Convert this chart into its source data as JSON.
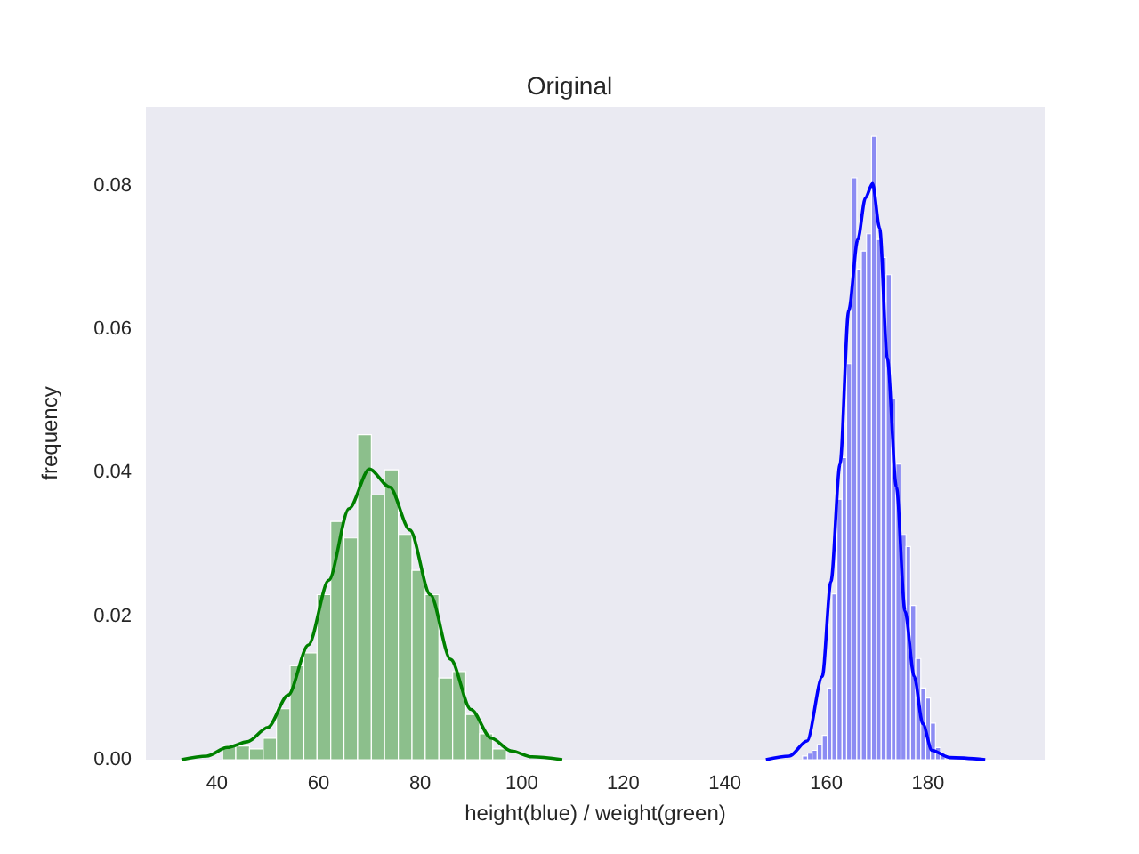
{
  "chart_data": {
    "type": "histogram",
    "title": "Original",
    "xlabel": "height(blue) / weight(green)",
    "ylabel": "frequency",
    "xlim": [
      26,
      203
    ],
    "xticks": [
      40,
      60,
      80,
      100,
      120,
      140,
      160,
      180
    ],
    "ylim": [
      0,
      0.091
    ],
    "yticks": [
      {
        "value": 0,
        "label": "0.00"
      },
      {
        "value": 0.02,
        "label": "0.02"
      },
      {
        "value": 0.04,
        "label": "0.04"
      },
      {
        "value": 0.06,
        "label": "0.06"
      },
      {
        "value": 0.08,
        "label": "0.08"
      }
    ],
    "grid": false,
    "series": [
      {
        "color": "#8cbf8c",
        "bins": [
          41.1,
          43.7,
          46.4,
          49.1,
          51.7,
          54.4,
          57.1,
          59.7,
          62.4,
          65.0,
          67.7,
          70.4,
          73.0,
          75.7,
          78.4,
          81.0,
          83.7,
          86.4,
          89.0,
          91.7,
          94.3,
          97.0
        ],
        "values": [
          0.0019,
          0.0019,
          0.0015,
          0.003,
          0.0071,
          0.0131,
          0.0149,
          0.023,
          0.0332,
          0.0309,
          0.0453,
          0.0369,
          0.0404,
          0.0314,
          0.0264,
          0.023,
          0.0114,
          0.0123,
          0.0063,
          0.0036,
          0.0015
        ]
      },
      {
        "type": "line",
        "color": "#008000",
        "x": [
          33,
          38,
          42,
          46,
          50,
          54,
          58,
          62,
          66,
          70,
          74,
          78,
          82,
          86,
          90,
          94,
          98,
          102,
          108
        ],
        "values": [
          0,
          0.0005,
          0.0017,
          0.0025,
          0.0045,
          0.009,
          0.016,
          0.025,
          0.035,
          0.0405,
          0.038,
          0.032,
          0.023,
          0.014,
          0.007,
          0.003,
          0.0012,
          0.0004,
          0
        ]
      },
      {
        "color": "#8c8cf3",
        "bins": [
          155.3,
          156.3,
          157.2,
          158.2,
          159.2,
          160.2,
          161.1,
          162.1,
          163.1,
          164.0,
          165.0,
          166.0,
          166.9,
          167.9,
          168.9,
          169.9,
          170.8,
          171.8,
          172.8,
          173.7,
          174.7,
          175.7,
          176.6,
          177.6,
          178.6,
          179.6,
          180.5,
          181.5,
          182.5,
          183.4
        ],
        "values": [
          0.0005,
          0.0009,
          0.0013,
          0.0021,
          0.0034,
          0.01,
          0.0231,
          0.0363,
          0.0421,
          0.0552,
          0.0811,
          0.0684,
          0.0709,
          0.0733,
          0.0869,
          0.0725,
          0.07,
          0.0676,
          0.0503,
          0.0412,
          0.0314,
          0.0297,
          0.0215,
          0.0141,
          0.01,
          0.0086,
          0.0051,
          0.0017,
          0.0009
        ]
      },
      {
        "type": "line",
        "color": "#0000ff",
        "x": [
          148.1,
          152.7,
          156.2,
          159.2,
          160.9,
          162.7,
          164.4,
          166.2,
          167.7,
          169.1,
          170.5,
          172.0,
          173.8,
          175.5,
          177.3,
          179.0,
          180.8,
          184.3,
          191.3
        ],
        "values": [
          0,
          0.0005,
          0.0026,
          0.0116,
          0.0248,
          0.0412,
          0.0626,
          0.0725,
          0.0783,
          0.0803,
          0.0741,
          0.056,
          0.038,
          0.0207,
          0.0116,
          0.005,
          0.0013,
          0.0003,
          0
        ]
      }
    ]
  }
}
